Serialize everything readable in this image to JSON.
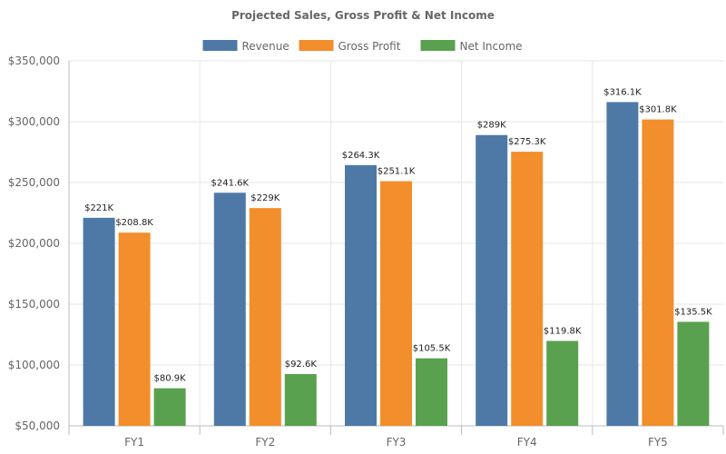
{
  "chart_data": {
    "type": "bar",
    "title": "Projected Sales, Gross Profit & Net Income",
    "xlabel": "",
    "ylabel": "",
    "categories": [
      "FY1",
      "FY2",
      "FY3",
      "FY4",
      "FY5"
    ],
    "ylim": [
      50000,
      350000
    ],
    "yticks": [
      50000,
      100000,
      150000,
      200000,
      250000,
      300000,
      350000
    ],
    "ytick_labels": [
      "$50,000",
      "$100,000",
      "$150,000",
      "$200,000",
      "$250,000",
      "$300,000",
      "$350,000"
    ],
    "grid": true,
    "legend_position": "top-center",
    "series": [
      {
        "name": "Revenue",
        "color": "#4e79a7",
        "values": [
          221000,
          241600,
          264300,
          289000,
          316100
        ],
        "labels": [
          "$221K",
          "$241.6K",
          "$264.3K",
          "$289K",
          "$316.1K"
        ]
      },
      {
        "name": "Gross Profit",
        "color": "#f28e2b",
        "values": [
          208800,
          229000,
          251100,
          275300,
          301800
        ],
        "labels": [
          "$208.8K",
          "$229K",
          "$251.1K",
          "$275.3K",
          "$301.8K"
        ]
      },
      {
        "name": "Net Income",
        "color": "#59a14f",
        "values": [
          80900,
          92600,
          105500,
          119800,
          135500
        ],
        "labels": [
          "$80.9K",
          "$92.6K",
          "$105.5K",
          "$119.8K",
          "$135.5K"
        ]
      }
    ]
  }
}
